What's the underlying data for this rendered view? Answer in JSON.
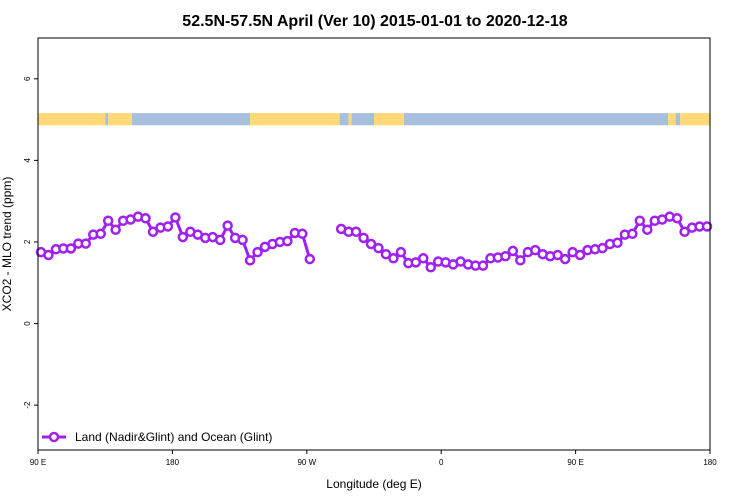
{
  "chart_data": {
    "type": "line",
    "title": "52.5N-57.5N April (Ver 10)   2015-01-01 to 2020-12-18",
    "xlabel": "Longitude (deg E)",
    "ylabel": "XCO2 - MLO trend (ppm)",
    "x_ticks": [
      {
        "value": 90,
        "label": "90 E"
      },
      {
        "value": 180,
        "label": "180"
      },
      {
        "value": 270,
        "label": "90 W"
      },
      {
        "value": 360,
        "label": "0"
      },
      {
        "value": 450,
        "label": "90 E"
      },
      {
        "value": 540,
        "label": "180"
      }
    ],
    "y_ticks": [
      {
        "value": -2,
        "label": "-2"
      },
      {
        "value": 0,
        "label": "0"
      },
      {
        "value": 2,
        "label": "2"
      },
      {
        "value": 4,
        "label": "4"
      },
      {
        "value": 6,
        "label": "6"
      }
    ],
    "xlim": [
      90,
      540
    ],
    "ylim": [
      -3.1,
      7.0
    ],
    "grid": false,
    "legend_position": "bottom-left",
    "land_ocean_strip": {
      "y_range": [
        4.86,
        5.16
      ],
      "land_color": "#FFD87A",
      "ocean_color": "#A8BEDD",
      "segments": [
        {
          "type": "land",
          "from": 90,
          "to": 135
        },
        {
          "type": "ocean",
          "from": 135,
          "to": 137
        },
        {
          "type": "land",
          "from": 137,
          "to": 153
        },
        {
          "type": "ocean",
          "from": 153,
          "to": 232
        },
        {
          "type": "land",
          "from": 232,
          "to": 292
        },
        {
          "type": "ocean",
          "from": 292,
          "to": 298
        },
        {
          "type": "land",
          "from": 298,
          "to": 300
        },
        {
          "type": "ocean",
          "from": 300,
          "to": 315
        },
        {
          "type": "land",
          "from": 315,
          "to": 335
        },
        {
          "type": "ocean",
          "from": 335,
          "to": 512
        },
        {
          "type": "land",
          "from": 512,
          "to": 517
        },
        {
          "type": "ocean",
          "from": 517,
          "to": 520
        },
        {
          "type": "land",
          "from": 520,
          "to": 540
        }
      ]
    },
    "series": [
      {
        "name": "Land (Nadir&Glint) and Ocean (Glint)",
        "color": "#A020F0",
        "segments": [
          {
            "x": [
              92,
              97,
              102,
              107,
              112,
              117,
              122,
              127,
              132,
              137,
              142,
              147,
              152,
              157,
              162,
              167,
              172,
              177,
              182,
              187,
              192,
              197,
              202,
              207,
              212,
              217,
              222,
              227,
              232,
              237,
              242,
              247,
              252,
              257,
              262,
              267,
              272
            ],
            "y": [
              1.75,
              1.68,
              1.82,
              1.84,
              1.84,
              1.96,
              1.96,
              2.18,
              2.2,
              2.52,
              2.3,
              2.52,
              2.55,
              2.62,
              2.58,
              2.25,
              2.35,
              2.38,
              2.6,
              2.12,
              2.25,
              2.18,
              2.1,
              2.12,
              2.05,
              2.4,
              2.1,
              2.05,
              1.55,
              1.75,
              1.88,
              1.95,
              2.0,
              2.02,
              2.22,
              2.2,
              1.58
            ]
          },
          {
            "x": [
              293,
              298,
              303,
              308,
              313,
              318,
              323,
              328,
              333,
              338,
              343,
              348,
              353,
              358,
              363,
              368,
              373,
              378,
              383,
              388,
              393,
              398,
              403,
              408,
              413,
              418,
              423,
              428,
              433,
              438,
              443,
              448,
              453,
              458,
              463,
              468,
              473,
              478,
              483,
              488,
              493,
              498,
              503,
              508,
              513,
              518,
              523,
              528,
              533,
              538
            ],
            "y": [
              2.32,
              2.25,
              2.25,
              2.1,
              1.95,
              1.85,
              1.7,
              1.6,
              1.75,
              1.48,
              1.5,
              1.6,
              1.38,
              1.52,
              1.5,
              1.45,
              1.52,
              1.45,
              1.42,
              1.42,
              1.6,
              1.62,
              1.65,
              1.78,
              1.55,
              1.75,
              1.8,
              1.7,
              1.65,
              1.68,
              1.58,
              1.75,
              1.68,
              1.8,
              1.82,
              1.85,
              1.95,
              1.98,
              2.18,
              2.2,
              2.52,
              2.3,
              2.52,
              2.55,
              2.62,
              2.58,
              2.25,
              2.35,
              2.38,
              2.38
            ]
          }
        ]
      }
    ]
  }
}
